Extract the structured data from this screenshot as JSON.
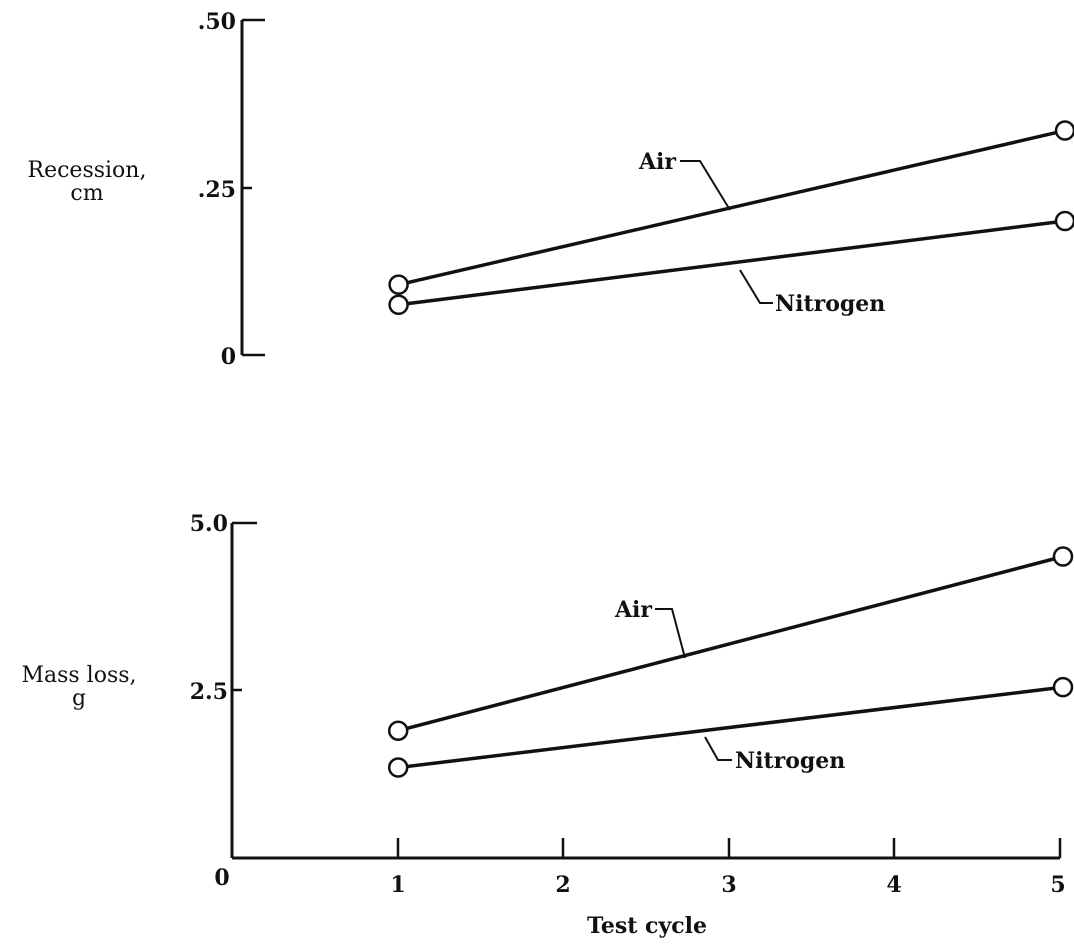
{
  "chart_data": [
    {
      "type": "line",
      "ylabel": [
        "Recession,",
        "cm"
      ],
      "xlim": [
        0,
        5
      ],
      "ylim": [
        0,
        0.5
      ],
      "yticks": [
        ".50",
        ".25",
        "0"
      ],
      "series": [
        {
          "name": "Air",
          "x": [
            1,
            5
          ],
          "values": [
            0.105,
            0.335
          ]
        },
        {
          "name": "Nitrogen",
          "x": [
            1,
            5
          ],
          "values": [
            0.075,
            0.2
          ]
        }
      ]
    },
    {
      "type": "line",
      "xlabel": "Test cycle",
      "ylabel": [
        "Mass loss,",
        "g"
      ],
      "xlim": [
        0,
        5
      ],
      "ylim": [
        0,
        5.0
      ],
      "xticks": [
        "0",
        "1",
        "2",
        "3",
        "4",
        "5"
      ],
      "yticks": [
        "5.0",
        "2.5"
      ],
      "series": [
        {
          "name": "Air",
          "x": [
            1,
            5
          ],
          "values": [
            1.9,
            4.5
          ]
        },
        {
          "name": "Nitrogen",
          "x": [
            1,
            5
          ],
          "values": [
            1.35,
            2.55
          ]
        }
      ]
    }
  ]
}
